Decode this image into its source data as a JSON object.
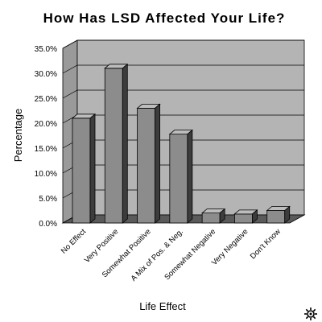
{
  "chart_data": {
    "type": "bar",
    "title": "How Has LSD Affected Your Life?",
    "xlabel": "Life Effect",
    "ylabel": "Percentage",
    "categories": [
      "No Effect",
      "Very Positive",
      "Somewhat Positive",
      "A Mix of Pos. & Neg.",
      "Somewhat Negative",
      "Very Negative",
      "Don't Know"
    ],
    "values": [
      21.0,
      31.0,
      23.0,
      17.8,
      2.0,
      1.8,
      2.5
    ],
    "ylim": [
      0,
      35
    ],
    "yticks": [
      "0.0%",
      "5.0%",
      "10.0%",
      "15.0%",
      "20.0%",
      "25.0%",
      "30.0%",
      "35.0%"
    ],
    "grid": true,
    "legend": "none",
    "colors": {
      "plot_background": "#b4b4b4",
      "plot_side_wall": "#9a9a9a",
      "floor": "#5a5a5a",
      "bar_front": "#8c8c8c",
      "bar_top": "#bdbdbd",
      "bar_side": "#3c3c3c"
    }
  },
  "logo": {
    "icon": "sun-gear-icon"
  }
}
